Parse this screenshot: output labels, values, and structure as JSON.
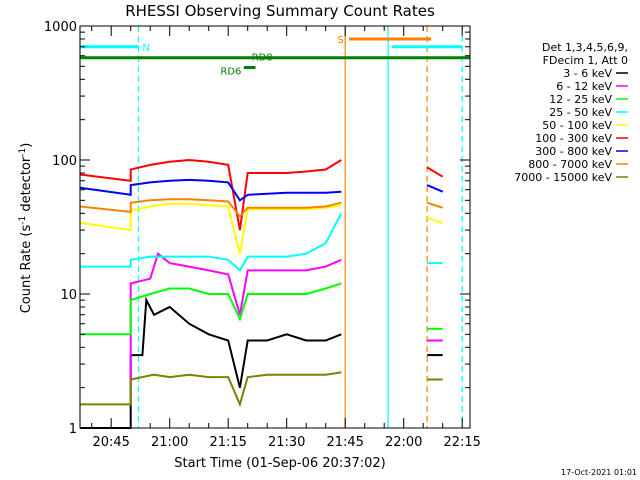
{
  "chart_data": {
    "type": "line",
    "title": "RHESSI Observing Summary Count Rates",
    "xlabel": "Start Time (01-Sep-06 20:37:02)",
    "ylabel_main": "Count Rate (s",
    "ylabel_sup1": "-1",
    "ylabel_mid": " detector",
    "ylabel_sup2": "-1",
    "ylabel_end": ")",
    "yscale": "log",
    "ylim": [
      1,
      1000
    ],
    "y_ticks": [
      {
        "value": 1,
        "label": "1"
      },
      {
        "value": 10,
        "label": "10"
      },
      {
        "value": 100,
        "label": "100"
      },
      {
        "value": 1000,
        "label": "1000"
      }
    ],
    "xlim": [
      37,
      137
    ],
    "x_ticks": [
      {
        "value": 45,
        "label": "20:45"
      },
      {
        "value": 60,
        "label": "21:00"
      },
      {
        "value": 75,
        "label": "21:15"
      },
      {
        "value": 90,
        "label": "21:30"
      },
      {
        "value": 105,
        "label": "21:45"
      },
      {
        "value": 120,
        "label": "22:00"
      },
      {
        "value": 135,
        "label": "22:15"
      }
    ],
    "legend_header": [
      "Det 1,3,4,5,6,9,",
      "FDecim 1, Att 0"
    ],
    "legend_position": "right",
    "series": [
      {
        "name": "3 - 6 keV",
        "color": "#000000",
        "points": [
          [
            37,
            1
          ],
          [
            50,
            1
          ],
          [
            50,
            3.5
          ],
          [
            53,
            3.5
          ],
          [
            54,
            9
          ],
          [
            56,
            7
          ],
          [
            60,
            8
          ],
          [
            65,
            6
          ],
          [
            70,
            5
          ],
          [
            75,
            4.5
          ],
          [
            78,
            2
          ],
          [
            80,
            4.5
          ],
          [
            85,
            4.5
          ],
          [
            90,
            5
          ],
          [
            95,
            4.5
          ],
          [
            100,
            4.5
          ],
          [
            104,
            5
          ]
        ],
        "points2": [
          [
            126,
            3.5
          ],
          [
            130,
            3.5
          ]
        ]
      },
      {
        "name": "6 - 12 keV",
        "color": "#ff00ff",
        "points": [
          [
            50,
            2
          ],
          [
            50,
            12
          ],
          [
            55,
            13
          ],
          [
            57,
            20
          ],
          [
            60,
            17
          ],
          [
            65,
            16
          ],
          [
            70,
            15
          ],
          [
            75,
            14
          ],
          [
            78,
            7
          ],
          [
            80,
            15
          ],
          [
            85,
            15
          ],
          [
            90,
            15
          ],
          [
            95,
            15
          ],
          [
            100,
            16
          ],
          [
            104,
            18
          ]
        ],
        "points2": [
          [
            126,
            4.5
          ],
          [
            130,
            4.5
          ]
        ]
      },
      {
        "name": "12 - 25 keV",
        "color": "#00ff00",
        "points": [
          [
            37,
            5
          ],
          [
            50,
            5
          ],
          [
            50,
            9
          ],
          [
            55,
            10
          ],
          [
            60,
            11
          ],
          [
            65,
            11
          ],
          [
            70,
            10
          ],
          [
            75,
            10
          ],
          [
            78,
            6.5
          ],
          [
            80,
            10
          ],
          [
            85,
            10
          ],
          [
            90,
            10
          ],
          [
            95,
            10
          ],
          [
            100,
            11
          ],
          [
            104,
            12
          ]
        ],
        "points2": [
          [
            126,
            5.5
          ],
          [
            130,
            5.5
          ]
        ]
      },
      {
        "name": "25 - 50 keV",
        "color": "#00ffff",
        "points": [
          [
            37,
            16
          ],
          [
            50,
            16
          ],
          [
            50,
            18
          ],
          [
            55,
            19
          ],
          [
            60,
            19
          ],
          [
            65,
            19
          ],
          [
            70,
            19
          ],
          [
            75,
            18
          ],
          [
            78,
            15
          ],
          [
            80,
            19
          ],
          [
            85,
            19
          ],
          [
            90,
            19
          ],
          [
            95,
            20
          ],
          [
            100,
            24
          ],
          [
            104,
            40
          ]
        ],
        "points2": [
          [
            126,
            17
          ],
          [
            130,
            17
          ]
        ]
      },
      {
        "name": "50 - 100 keV",
        "color": "#ffff00",
        "points": [
          [
            37,
            34
          ],
          [
            50,
            30
          ],
          [
            50,
            42
          ],
          [
            55,
            45
          ],
          [
            60,
            47
          ],
          [
            65,
            47
          ],
          [
            70,
            46
          ],
          [
            75,
            45
          ],
          [
            78,
            20
          ],
          [
            80,
            43
          ],
          [
            85,
            43
          ],
          [
            90,
            43
          ],
          [
            95,
            43
          ],
          [
            100,
            44
          ],
          [
            104,
            46
          ]
        ],
        "points2": [
          [
            126,
            37
          ],
          [
            130,
            34
          ]
        ]
      },
      {
        "name": "100 - 300 keV",
        "color": "#ff0000",
        "points": [
          [
            37,
            78
          ],
          [
            50,
            70
          ],
          [
            50,
            85
          ],
          [
            55,
            92
          ],
          [
            60,
            97
          ],
          [
            65,
            100
          ],
          [
            70,
            97
          ],
          [
            75,
            92
          ],
          [
            78,
            30
          ],
          [
            80,
            80
          ],
          [
            85,
            80
          ],
          [
            90,
            80
          ],
          [
            95,
            82
          ],
          [
            100,
            85
          ],
          [
            104,
            100
          ]
        ],
        "points2": [
          [
            126,
            88
          ],
          [
            130,
            75
          ]
        ]
      },
      {
        "name": "300 - 800 keV",
        "color": "#0000ff",
        "points": [
          [
            37,
            62
          ],
          [
            50,
            55
          ],
          [
            50,
            65
          ],
          [
            55,
            68
          ],
          [
            60,
            70
          ],
          [
            65,
            71
          ],
          [
            70,
            70
          ],
          [
            75,
            68
          ],
          [
            78,
            50
          ],
          [
            80,
            55
          ],
          [
            85,
            56
          ],
          [
            90,
            57
          ],
          [
            95,
            57
          ],
          [
            100,
            57
          ],
          [
            104,
            58
          ]
        ],
        "points2": [
          [
            126,
            65
          ],
          [
            130,
            58
          ]
        ]
      },
      {
        "name": "800 - 7000 keV",
        "color": "#ff8000",
        "points": [
          [
            37,
            45
          ],
          [
            50,
            41
          ],
          [
            50,
            48
          ],
          [
            55,
            50
          ],
          [
            60,
            51
          ],
          [
            65,
            51
          ],
          [
            70,
            50
          ],
          [
            75,
            49
          ],
          [
            78,
            38
          ],
          [
            80,
            44
          ],
          [
            85,
            44
          ],
          [
            90,
            44
          ],
          [
            95,
            44
          ],
          [
            100,
            45
          ],
          [
            104,
            48
          ]
        ],
        "points2": [
          [
            126,
            48
          ],
          [
            130,
            44
          ]
        ]
      },
      {
        "name": "7000 - 15000 keV",
        "color": "#808000",
        "points": [
          [
            37,
            1.5
          ],
          [
            50,
            1.5
          ],
          [
            50,
            2.3
          ],
          [
            56,
            2.5
          ],
          [
            60,
            2.4
          ],
          [
            65,
            2.5
          ],
          [
            70,
            2.4
          ],
          [
            75,
            2.4
          ],
          [
            78,
            1.5
          ],
          [
            80,
            2.4
          ],
          [
            85,
            2.5
          ],
          [
            90,
            2.5
          ],
          [
            95,
            2.5
          ],
          [
            100,
            2.5
          ],
          [
            104,
            2.6
          ]
        ],
        "points2": [
          [
            126,
            2.3
          ],
          [
            130,
            2.3
          ]
        ]
      }
    ],
    "annotations": [
      {
        "label": "N",
        "color": "#00ffff",
        "x_start": 37,
        "x_end": 52,
        "y": 700,
        "label_x": 53,
        "label_y": 700
      },
      {
        "label": "S",
        "color": "#ff8000",
        "x_start": 106,
        "x_end": 127,
        "y": 800,
        "label_x": 103,
        "label_y": 800
      },
      {
        "label": "",
        "color": "#00ffff",
        "x_start": 117,
        "x_end": 135,
        "y": 700,
        "label_x": 0,
        "label_y": 0
      },
      {
        "label": "RD8",
        "color": "#008000",
        "x_start": 37,
        "x_end": 137,
        "y": 580,
        "label_x": 81,
        "label_y": 590
      },
      {
        "label": "RD6",
        "color": "#008000",
        "x_start": 79,
        "x_end": 82,
        "y": 490,
        "label_x": 73,
        "label_y": 465
      }
    ],
    "vlines": [
      {
        "x": 37,
        "color": "#00ffff",
        "style": "solid"
      },
      {
        "x": 52,
        "color": "#00ffff",
        "style": "dashed"
      },
      {
        "x": 105,
        "color": "#ff8000",
        "style": "solid"
      },
      {
        "x": 116,
        "color": "#00ffff",
        "style": "solid"
      },
      {
        "x": 126,
        "color": "#ff8000",
        "style": "dashed"
      },
      {
        "x": 135,
        "color": "#00ffff",
        "style": "dashed"
      }
    ],
    "timestamp": "17-Oct-2021 01:01"
  }
}
